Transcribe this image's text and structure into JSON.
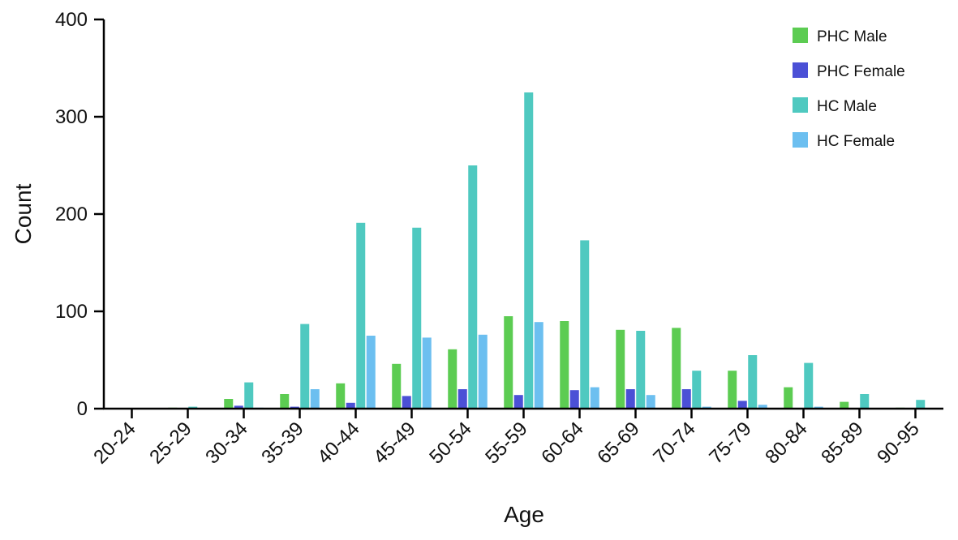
{
  "chart_data": {
    "type": "bar",
    "xlabel": "Age",
    "ylabel": "Count",
    "ylim": [
      0,
      400
    ],
    "y_ticks": [
      "0",
      "100",
      "200",
      "300",
      "400"
    ],
    "grid": false,
    "legend_position": "top-right",
    "categories": [
      "20-24",
      "25-29",
      "30-34",
      "35-39",
      "40-44",
      "45-49",
      "50-54",
      "55-59",
      "60-64",
      "65-69",
      "70-74",
      "75-79",
      "80-84",
      "85-89",
      "90-95"
    ],
    "series": [
      {
        "name": "PHC Male",
        "color": "#5ccc52",
        "values": [
          0,
          1,
          10,
          15,
          26,
          46,
          61,
          95,
          90,
          81,
          83,
          39,
          22,
          7,
          1
        ]
      },
      {
        "name": "PHC Female",
        "color": "#4b50d6",
        "values": [
          0,
          0,
          3,
          2,
          6,
          13,
          20,
          14,
          19,
          20,
          20,
          8,
          0,
          0,
          0
        ]
      },
      {
        "name": "HC Male",
        "color": "#4fc9c0",
        "values": [
          0,
          2,
          27,
          87,
          191,
          186,
          250,
          325,
          173,
          80,
          39,
          55,
          47,
          15,
          9
        ]
      },
      {
        "name": "HC Female",
        "color": "#6cbff0",
        "values": [
          0,
          0,
          1,
          20,
          75,
          73,
          76,
          89,
          22,
          14,
          2,
          4,
          2,
          0,
          0
        ]
      }
    ]
  }
}
